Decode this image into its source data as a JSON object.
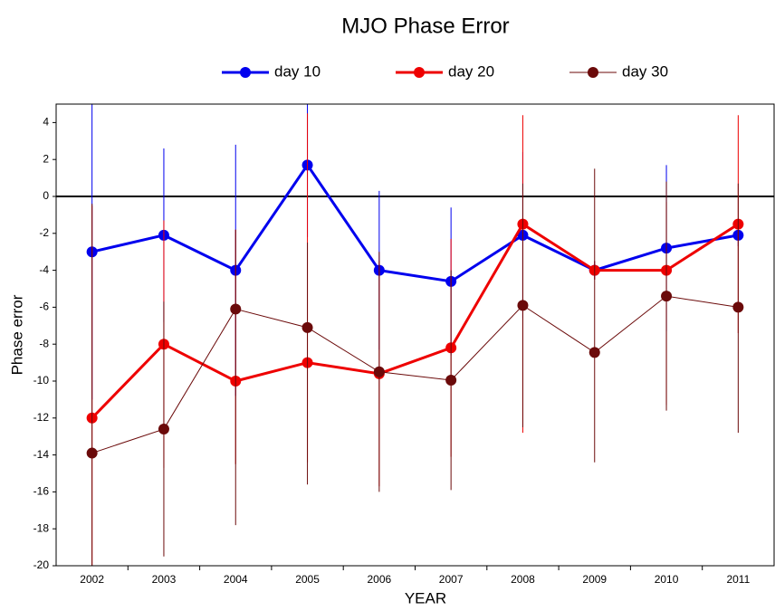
{
  "chart_data": {
    "type": "line",
    "title": "MJO Phase Error",
    "x_label": "YEAR",
    "y_label": "Phase error",
    "categories": [
      "2002",
      "2003",
      "2004",
      "2005",
      "2006",
      "2007",
      "2008",
      "2009",
      "2010",
      "2011"
    ],
    "ylim": [
      -20,
      5
    ],
    "yticks": [
      -20,
      -18,
      -16,
      -14,
      -12,
      -10,
      -8,
      -6,
      -4,
      -2,
      0,
      2,
      4
    ],
    "zero_line": 0,
    "series": [
      {
        "name": "day 10",
        "color": "#0000ee",
        "line_width": 3,
        "values": [
          -3,
          -2.1,
          -4,
          1.7,
          -4,
          -4.6,
          -2.1,
          -4,
          -2.8,
          -2.1
        ],
        "lower": [
          -11,
          -6.8,
          -10.8,
          -2.2,
          -8.3,
          -8.6,
          -6.6,
          -4.5,
          -7.3,
          -2.7
        ],
        "upper": [
          5.5,
          2.6,
          2.8,
          5.5,
          0.3,
          -0.6,
          2.4,
          -3.5,
          1.7,
          -1.5
        ]
      },
      {
        "name": "day 20",
        "color": "#ee0000",
        "line_width": 3,
        "values": [
          -12,
          -8,
          -10,
          -9,
          -9.6,
          -8.2,
          -1.5,
          -4,
          -4,
          -1.5
        ],
        "lower": [
          -20.5,
          -14.7,
          -14.5,
          -14.4,
          -15.7,
          -14.1,
          -12.8,
          -4.5,
          -11.3,
          -7.4
        ],
        "upper": [
          -0.5,
          -1.3,
          -1.8,
          4.5,
          -3.5,
          -2.3,
          4.4,
          -3.5,
          -0.3,
          4.4
        ]
      },
      {
        "name": "day 30",
        "color": "#6b0a0a",
        "line_width": 1,
        "values": [
          -13.9,
          -12.6,
          -6.1,
          -7.1,
          -9.5,
          -9.95,
          -5.9,
          -8.45,
          -5.4,
          -6.0
        ],
        "lower": [
          -20.5,
          -19.5,
          -17.8,
          -15.6,
          -16.0,
          -15.9,
          -12.5,
          -14.4,
          -11.6,
          -12.8
        ],
        "upper": [
          -0.4,
          -5.7,
          -1.8,
          -2.5,
          -3.0,
          -4.0,
          0.7,
          1.5,
          0.8,
          0.7
        ]
      }
    ]
  }
}
